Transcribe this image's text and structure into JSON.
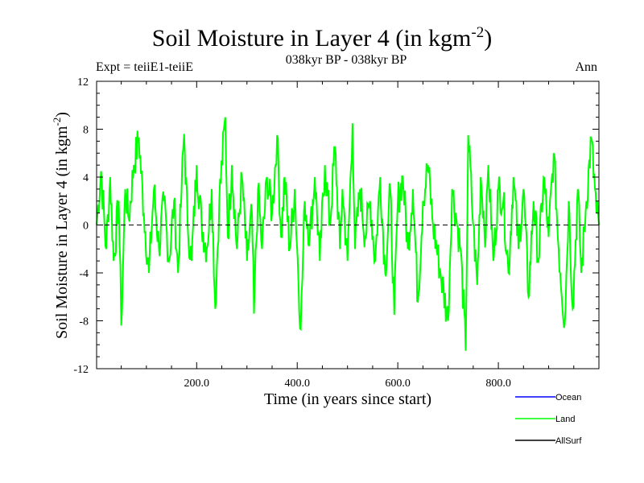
{
  "header": {
    "title_main": "Soil Moisture in Layer 4 (in kgm",
    "title_exp": "-2",
    "title_close": ")",
    "subtitle": "038kyr BP - 038kyr BP",
    "expt": "Expt = teiiE1-teiiE",
    "period": "Ann"
  },
  "chart_data": {
    "type": "line",
    "title": "Soil Moisture in Layer 4 (in kgm-2)",
    "subtitle": "038kyr BP - 038kyr BP",
    "xlabel": "Time (in years since start)",
    "ylabel": "Soil Moisture in Layer 4 (in kgm-2)",
    "ylabel_main": "Soil Moisture in Layer 4 (in kgm",
    "ylabel_exp": "-2",
    "ylabel_close": ")",
    "xlim": [
      1,
      1000
    ],
    "ylim": [
      -12,
      12
    ],
    "x_ticks": [
      200,
      400,
      600,
      800
    ],
    "x_tick_labels": [
      "200.0",
      "400.0",
      "600.0",
      "800.0"
    ],
    "y_ticks": [
      -12,
      -8,
      -4,
      0,
      4,
      8,
      12
    ],
    "y_tick_labels": [
      "-12",
      "-8",
      "-4",
      "0",
      "4",
      "8",
      "12"
    ],
    "zero_line": "dashed",
    "legend_position": "bottom-right",
    "series": [
      {
        "name": "Land",
        "color": "#00ff00",
        "keypoints": [
          [
            1,
            0
          ],
          [
            10,
            4.5
          ],
          [
            20,
            -2
          ],
          [
            28,
            4
          ],
          [
            35,
            -3
          ],
          [
            45,
            2
          ],
          [
            50,
            -8.4
          ],
          [
            58,
            3
          ],
          [
            65,
            0.5
          ],
          [
            75,
            5
          ],
          [
            85,
            7.3
          ],
          [
            95,
            1
          ],
          [
            105,
            -4
          ],
          [
            115,
            3
          ],
          [
            125,
            -2
          ],
          [
            135,
            2
          ],
          [
            145,
            -3
          ],
          [
            155,
            2
          ],
          [
            163,
            -4
          ],
          [
            170,
            3
          ],
          [
            175,
            7.6
          ],
          [
            182,
            0
          ],
          [
            190,
            -3
          ],
          [
            200,
            5
          ],
          [
            210,
            0
          ],
          [
            220,
            -2
          ],
          [
            230,
            3
          ],
          [
            237,
            -7
          ],
          [
            245,
            2
          ],
          [
            257,
            9
          ],
          [
            262,
            -1
          ],
          [
            270,
            5
          ],
          [
            280,
            -2
          ],
          [
            290,
            4
          ],
          [
            300,
            -3
          ],
          [
            310,
            1
          ],
          [
            314,
            -7.4
          ],
          [
            322,
            3
          ],
          [
            330,
            -2
          ],
          [
            340,
            4
          ],
          [
            350,
            1
          ],
          [
            360,
            7.5
          ],
          [
            368,
            -1
          ],
          [
            375,
            4
          ],
          [
            385,
            -2
          ],
          [
            395,
            3
          ],
          [
            407,
            -8.7
          ],
          [
            415,
            2
          ],
          [
            425,
            -1
          ],
          [
            435,
            4
          ],
          [
            445,
            -3
          ],
          [
            455,
            5
          ],
          [
            465,
            0
          ],
          [
            475,
            6.5
          ],
          [
            485,
            -2
          ],
          [
            490,
            3
          ],
          [
            500,
            -3
          ],
          [
            510,
            8.5
          ],
          [
            515,
            -2
          ],
          [
            525,
            3
          ],
          [
            535,
            -1
          ],
          [
            545,
            2
          ],
          [
            555,
            -3
          ],
          [
            565,
            4
          ],
          [
            575,
            -4
          ],
          [
            585,
            3
          ],
          [
            593,
            -7.5
          ],
          [
            600,
            2
          ],
          [
            610,
            4
          ],
          [
            620,
            -2
          ],
          [
            630,
            3
          ],
          [
            640,
            -6.4
          ],
          [
            650,
            2
          ],
          [
            660,
            5
          ],
          [
            670,
            0
          ],
          [
            685,
            -4
          ],
          [
            700,
            -8
          ],
          [
            708,
            3
          ],
          [
            715,
            1
          ],
          [
            725,
            -2
          ],
          [
            735,
            -10.5
          ],
          [
            740,
            7.5
          ],
          [
            750,
            0
          ],
          [
            758,
            -5
          ],
          [
            765,
            4
          ],
          [
            775,
            -1
          ],
          [
            780,
            5
          ],
          [
            790,
            -3
          ],
          [
            800,
            3
          ],
          [
            810,
            2
          ],
          [
            820,
            -4
          ],
          [
            830,
            4
          ],
          [
            840,
            -2
          ],
          [
            850,
            3
          ],
          [
            860,
            -6
          ],
          [
            870,
            2
          ],
          [
            880,
            -3
          ],
          [
            890,
            4
          ],
          [
            900,
            -1
          ],
          [
            910,
            6
          ],
          [
            920,
            -2
          ],
          [
            932,
            -8.3
          ],
          [
            940,
            2
          ],
          [
            948,
            -7
          ],
          [
            958,
            3
          ],
          [
            965,
            -4
          ],
          [
            975,
            2
          ],
          [
            985,
            7.2
          ],
          [
            995,
            1
          ],
          [
            1000,
            0
          ]
        ]
      }
    ],
    "legend": [
      {
        "name": "Ocean",
        "color": "#0000ff"
      },
      {
        "name": "Land",
        "color": "#00ff00"
      },
      {
        "name": "AllSurf",
        "color": "#000000"
      }
    ]
  }
}
